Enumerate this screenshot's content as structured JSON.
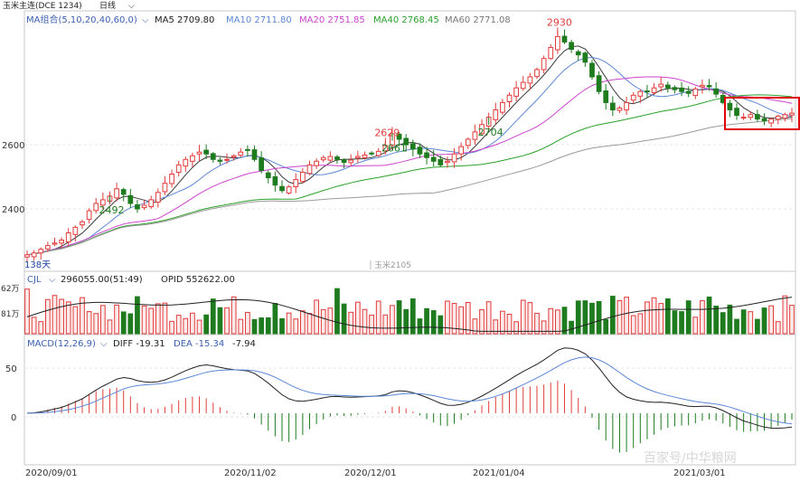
{
  "header": {
    "title": "玉米主连(DCE 1234)",
    "period": "日线",
    "ma_label": "MA组合(5,10,20,40,60,0)",
    "ma5": "MA5 2709.80",
    "ma10": "MA10 2711.80",
    "ma20": "MA20 2751.85",
    "ma40": "MA40 2768.45",
    "ma60": "MA60 2771.08"
  },
  "price_axis": {
    "ticks": [
      "2600",
      "2400"
    ]
  },
  "watermark_inner": "玉米2105",
  "count_label": "138天",
  "cjl": {
    "label": "CJL",
    "vol": "296055.00(51:49)",
    "opid": "OPID 552622.00",
    "ticks": [
      "62万",
      "81万"
    ]
  },
  "macd": {
    "label": "MACD(12,26,9)",
    "diff": "DIFF -19.31",
    "dea": "DEA -15.34",
    "macd_val": "-7.94",
    "ticks": [
      "50",
      "0"
    ]
  },
  "date_labels": [
    "2020/09/01",
    "2020/11/02",
    "2020/12/01",
    "2021/01/04",
    "2021/03/01"
  ],
  "watermark_footer": "百家号/中华粮网",
  "colors": {
    "up": "#e23b3b",
    "down": "#1e7b1e",
    "ma5": "#3a3a3a",
    "ma10": "#5c87d6",
    "ma20": "#cc44cc",
    "ma40": "#2aa02a",
    "ma60": "#9a9a9a",
    "highlight": "#e00000"
  },
  "chart_data": {
    "type": "candlestick",
    "x_range": [
      "2020/09/01",
      "2021/03"
    ],
    "price_ylim": [
      2290,
      2990
    ],
    "annotations": [
      {
        "label": "2629",
        "value": 2629,
        "kind": "high"
      },
      {
        "label": "2492",
        "value": 2492,
        "kind": "low"
      },
      {
        "label": "2930",
        "value": 2930,
        "kind": "high"
      },
      {
        "label": "2704",
        "value": 2704,
        "kind": "low"
      },
      {
        "label": "2661",
        "value": 2661,
        "kind": "low"
      }
    ],
    "closes": [
      2330,
      2335,
      2345,
      2355,
      2362,
      2370,
      2390,
      2405,
      2420,
      2450,
      2470,
      2480,
      2490,
      2510,
      2495,
      2470,
      2455,
      2465,
      2480,
      2500,
      2525,
      2550,
      2575,
      2590,
      2600,
      2610,
      2605,
      2590,
      2585,
      2590,
      2600,
      2610,
      2615,
      2590,
      2560,
      2540,
      2520,
      2505,
      2515,
      2535,
      2555,
      2575,
      2585,
      2595,
      2598,
      2590,
      2582,
      2588,
      2598,
      2602,
      2605,
      2612,
      2628,
      2660,
      2645,
      2630,
      2618,
      2605,
      2595,
      2585,
      2575,
      2585,
      2605,
      2625,
      2645,
      2665,
      2685,
      2705,
      2725,
      2745,
      2765,
      2785,
      2800,
      2815,
      2835,
      2865,
      2895,
      2925,
      2910,
      2890,
      2875,
      2855,
      2815,
      2775,
      2745,
      2725,
      2730,
      2745,
      2765,
      2775,
      2775,
      2785,
      2795,
      2785,
      2780,
      2775,
      2770,
      2782,
      2792,
      2788,
      2768,
      2745,
      2725,
      2710,
      2705,
      2712,
      2700,
      2695,
      2700,
      2708,
      2712,
      2716
    ],
    "volume_ylim": [
      0,
      620000
    ],
    "macd_ylim": [
      -60,
      75
    ]
  }
}
